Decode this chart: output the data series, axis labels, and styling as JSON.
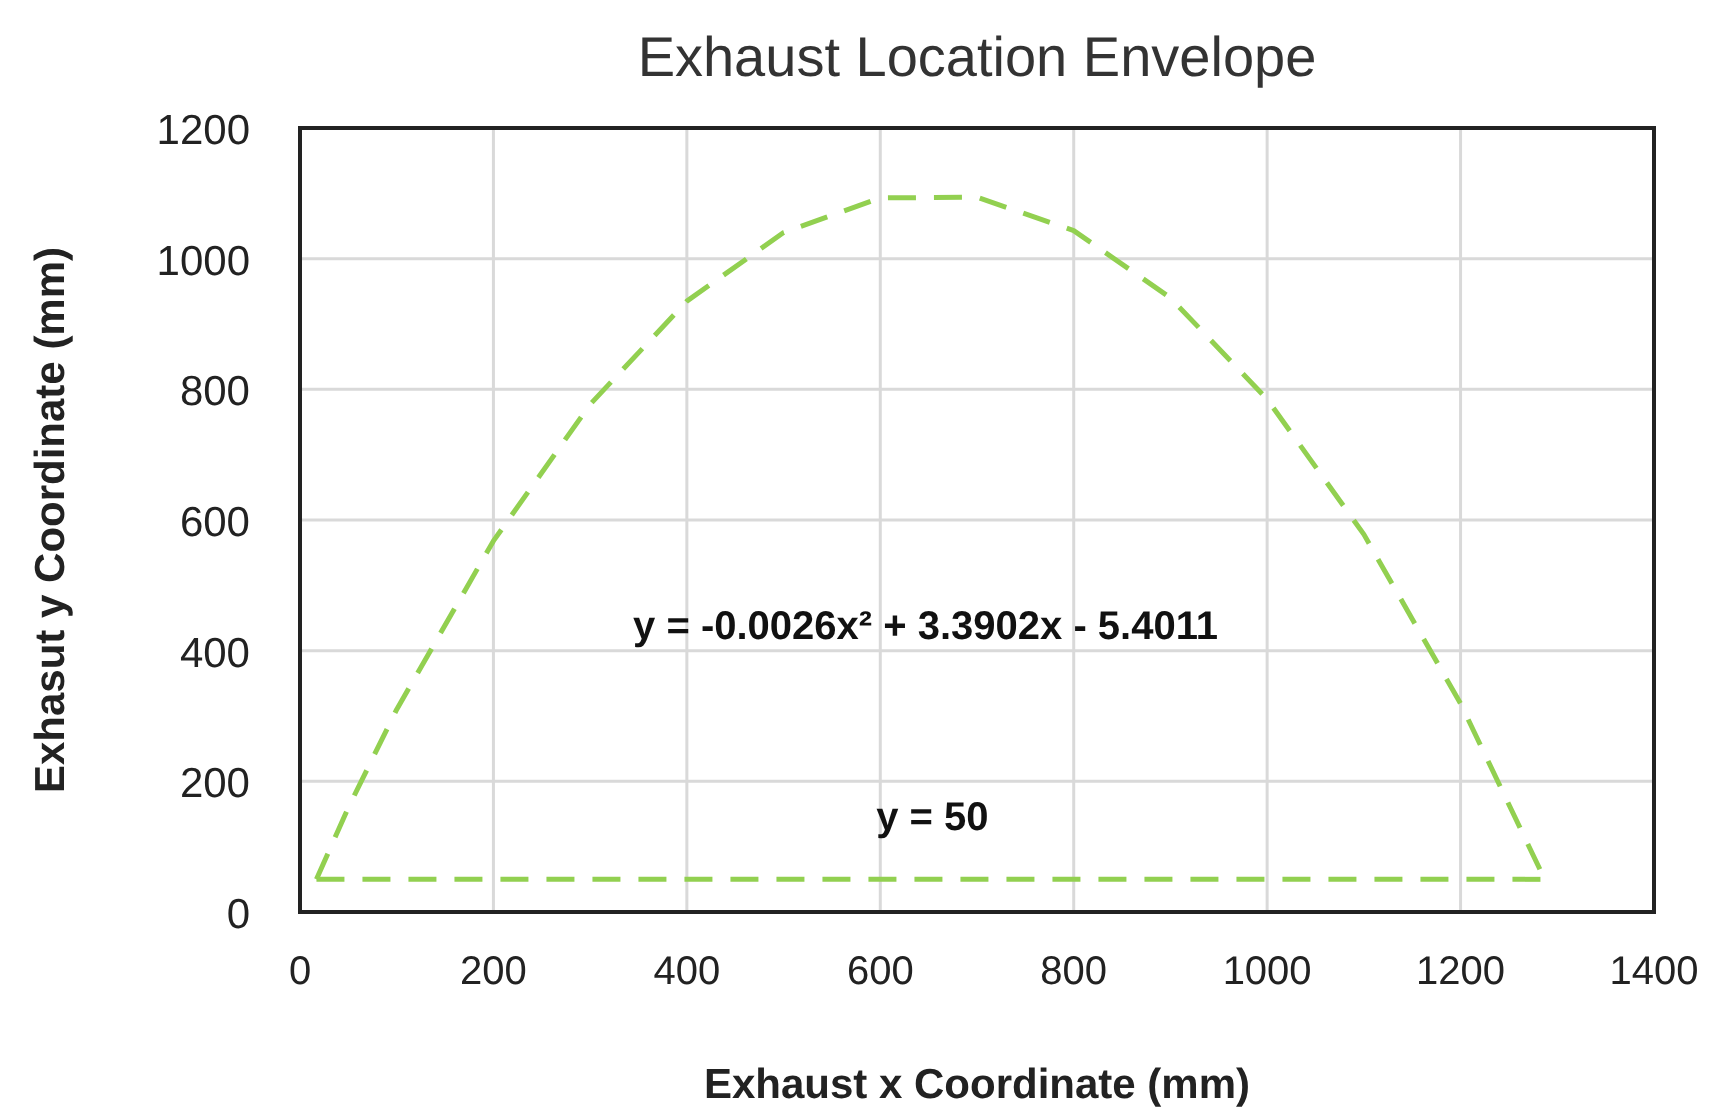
{
  "chart_data": {
    "type": "line",
    "title": "Exhaust Location Envelope",
    "xlabel": "Exhaust x Coordinate (mm)",
    "ylabel": "Exhasut y Coordinate (mm)",
    "xlim": [
      0,
      1400
    ],
    "xticks": [
      0,
      200,
      400,
      600,
      800,
      1000,
      1200,
      1400
    ],
    "ylim": [
      0,
      1200
    ],
    "yticks": [
      0,
      200,
      400,
      600,
      800,
      1000,
      1200
    ],
    "grid": true,
    "line_style": "dashed",
    "marker": "none",
    "series": [
      {
        "color": "#92d050",
        "x": [
          17,
          50,
          100,
          200,
          300,
          400,
          500,
          600,
          700,
          800,
          900,
          1000,
          1100,
          1200,
          1287
        ],
        "values": [
          50,
          160,
          310,
          568,
          777,
          935,
          1040,
          1093,
          1094,
          1043,
          940,
          785,
          578,
          319,
          50
        ]
      },
      {
        "color": "#92d050",
        "x": [
          17,
          1287
        ],
        "values": [
          50,
          50
        ]
      }
    ],
    "annotations": [
      "y = -0.0026x² + 3.3902x - 5.4011",
      "y = 50"
    ]
  }
}
